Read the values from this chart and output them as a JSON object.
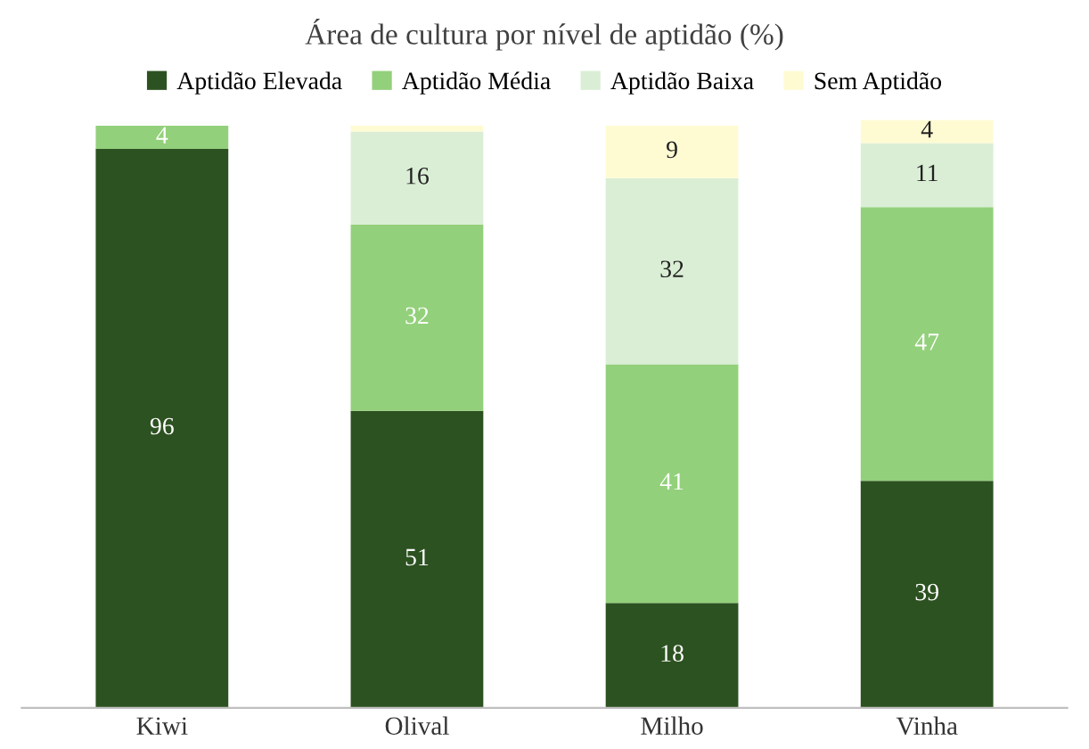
{
  "chart_data": {
    "type": "bar",
    "stacked": true,
    "title": "Área de cultura por nível de aptidão (%)",
    "categories": [
      "Kiwi",
      "Olival",
      "Milho",
      "Vinha"
    ],
    "legend": "top",
    "series": [
      {
        "name": "Aptidão Elevada",
        "color": "#2d5221",
        "values": [
          96,
          51,
          18,
          39
        ],
        "value_labels": [
          "96",
          "51",
          "18",
          "39"
        ]
      },
      {
        "name": "Aptidão Média",
        "color": "#93d07b",
        "values": [
          4,
          32,
          41,
          47
        ],
        "value_labels": [
          "4",
          "32",
          "41",
          "47"
        ]
      },
      {
        "name": "Aptidão Baixa",
        "color": "#daeed5",
        "values": [
          0,
          16,
          32,
          11
        ],
        "value_labels": [
          null,
          "16",
          "32",
          "11"
        ]
      },
      {
        "name": "Sem Aptidão",
        "color": "#fefbd3",
        "values": [
          0,
          1,
          9,
          4
        ],
        "value_labels": [
          null,
          null,
          "9",
          "4"
        ]
      }
    ]
  }
}
